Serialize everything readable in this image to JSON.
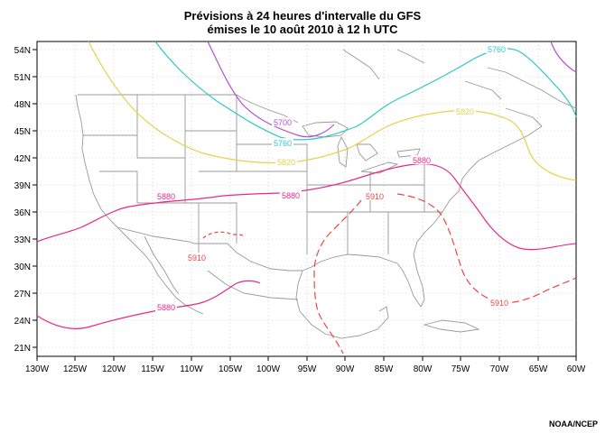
{
  "title_line1": "Prévisions à 24 heures d'intervalle du GFS",
  "title_line2": "émises le 10 août 2010 à 12 h UTC",
  "credit": "NOAA/NCEP",
  "lat_labels": [
    "54N",
    "51N",
    "48N",
    "45N",
    "42N",
    "39N",
    "36N",
    "33N",
    "30N",
    "27N",
    "24N",
    "21N"
  ],
  "lon_labels": [
    "130W",
    "125W",
    "120W",
    "115W",
    "110W",
    "105W",
    "100W",
    "95W",
    "90W",
    "85W",
    "80W",
    "75W",
    "70W",
    "65W",
    "60W"
  ],
  "contours": {
    "c5700": "5700",
    "c5760a": "5760",
    "c5760b": "5760",
    "c5820a": "5820",
    "c5820b": "5820",
    "c5880a": "5880",
    "c5880b": "5880",
    "c5880c": "5880",
    "c5880d": "5880",
    "c5910a": "5910",
    "c5910b": "5910",
    "c5910c": "5910"
  },
  "colors": {
    "c5700": "#b34fd6",
    "c5760": "#2ec8c8",
    "c5820": "#e6d24a",
    "c5880": "#e6298a",
    "c5910": "#ee4444",
    "geography": "#999999"
  }
}
